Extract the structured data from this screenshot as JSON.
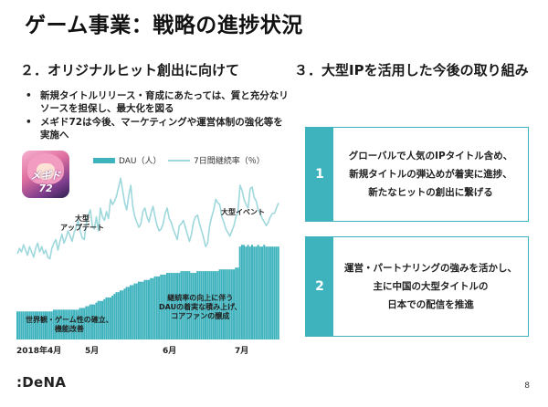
{
  "title": "ゲーム事業：戦略の進捗状況",
  "left": {
    "heading": "２．オリジナルヒット創出に向けて",
    "bullets": [
      "新規タイトルリリース・育成にあたっては、質と充分なリソースを担保し、最大化を図る",
      "メギド72は今後、マーケティングや運営体制の強化等を実施へ"
    ],
    "app_logo_text": "メギド72"
  },
  "right": {
    "heading": "３．大型IPを活用した今後の取り組み",
    "boxes": [
      {
        "num": "1",
        "lines": [
          "グローバルで人気のIPタイトル含め、",
          "新規タイトルの弾込めが着実に進捗、",
          "新たなヒットの創出に繋げる"
        ]
      },
      {
        "num": "2",
        "lines": [
          "運営・パートナリングの強みを活かし、",
          "主に中国の大型タイトルの",
          "日本での配信を推進"
        ]
      }
    ]
  },
  "chart_data": {
    "type": "bar",
    "title": "",
    "legend": [
      "DAU（人）",
      "7日間継続率（％）"
    ],
    "x_ticks": [
      "2018年4月",
      "5月",
      "6月",
      "7月"
    ],
    "axes_visible": false,
    "note": "Unlabeled axes; values are relative heights on a 0–100 scale estimated from the figure.",
    "series": [
      {
        "name": "DAU（人）",
        "type": "bar",
        "values": [
          16,
          16,
          16,
          16,
          16,
          16,
          16,
          16,
          16,
          16,
          16,
          16,
          16,
          16,
          16,
          16,
          16,
          16,
          17,
          17,
          17,
          17,
          17,
          17,
          17,
          17,
          17,
          17,
          17,
          17,
          17,
          18,
          18,
          18,
          19,
          19,
          20,
          20,
          20,
          21,
          22,
          22,
          22,
          23,
          24,
          24,
          24,
          25,
          26,
          27,
          27,
          28,
          28,
          29,
          30,
          30,
          31,
          31,
          32,
          32,
          33,
          33,
          33,
          34,
          34,
          34,
          35,
          35,
          36,
          36,
          36,
          37,
          37,
          37,
          38,
          38,
          38,
          38,
          38,
          38,
          38,
          39,
          39,
          39,
          39,
          39,
          38,
          38,
          38,
          39,
          39,
          39,
          39,
          39,
          39,
          39,
          39,
          39,
          39,
          39,
          40,
          40,
          40,
          40,
          40,
          40,
          40,
          40,
          41,
          41,
          53,
          54,
          54,
          53,
          54,
          53,
          54,
          53,
          53,
          54,
          53,
          53,
          54,
          53,
          53,
          53,
          53,
          53,
          53,
          53
        ]
      },
      {
        "name": "7日間継続率（％）",
        "type": "line",
        "values": [
          49,
          52,
          50,
          54,
          51,
          48,
          53,
          50,
          47,
          52,
          55,
          50,
          53,
          49,
          51,
          47,
          46,
          52,
          55,
          57,
          51,
          56,
          60,
          55,
          58,
          62,
          59,
          56,
          61,
          64,
          68,
          62,
          58,
          57,
          66,
          71,
          74,
          65,
          63,
          70,
          62,
          75,
          70,
          68,
          73,
          69,
          80,
          77,
          79,
          82,
          87,
          92,
          85,
          78,
          74,
          82,
          88,
          76,
          70,
          67,
          64,
          66,
          73,
          75,
          70,
          67,
          72,
          76,
          70,
          65,
          62,
          63,
          66,
          72,
          75,
          69,
          67,
          63,
          60,
          57,
          65,
          66,
          68,
          64,
          60,
          56,
          60,
          67,
          70,
          71,
          66,
          62,
          58,
          53,
          55,
          65,
          70,
          74,
          80,
          78,
          77,
          70,
          67,
          63,
          61,
          59,
          62,
          65,
          70,
          73,
          88,
          85,
          80,
          77,
          75,
          86,
          87,
          81,
          79,
          74,
          72,
          69,
          67,
          65,
          67,
          70,
          72,
          72,
          75,
          78
        ]
      }
    ],
    "annotations": [
      "大型\nアップデート",
      "大型イベント",
      "継続率の向上に伴う\nDAUの着実な積み上げ、\nコアファンの醸成",
      "世界観・ゲーム性の確立、\n機能改善"
    ]
  },
  "annotations": {
    "update": [
      "大型",
      "アップデート"
    ],
    "event": "大型イベント",
    "growth": [
      "継続率の向上に伴う",
      "DAUの着実な積み上げ、",
      "コアファンの醸成"
    ],
    "world": [
      "世界観・ゲーム性の確立、",
      "機能改善"
    ]
  },
  "footer": {
    "logo": ":DeNA",
    "page": "8"
  },
  "colors": {
    "bar": "#3fb3bd",
    "line": "#9fd8dc",
    "accent": "#3fb3bd"
  }
}
